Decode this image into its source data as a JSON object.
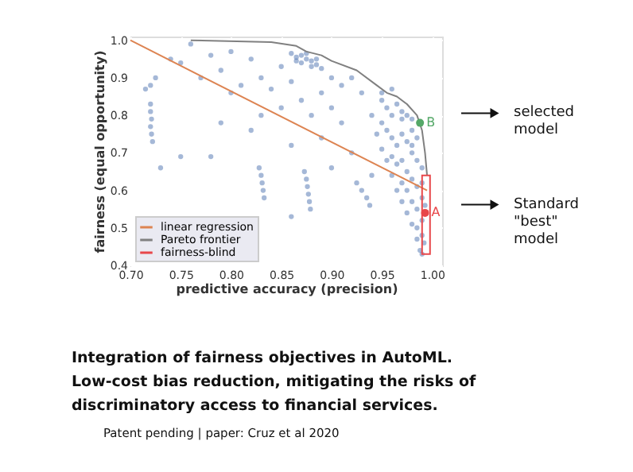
{
  "chart_data": {
    "type": "scatter",
    "xlabel": "predictive accuracy (precision)",
    "ylabel": "fairness (equal opportunity)",
    "xlim": [
      0.7,
      1.01
    ],
    "ylim": [
      0.4,
      1.01
    ],
    "xticks": [
      {
        "value": 0.7,
        "label": "0.70"
      },
      {
        "value": 0.75,
        "label": "0.75"
      },
      {
        "value": 0.8,
        "label": "0.80"
      },
      {
        "value": 0.85,
        "label": "0.85"
      },
      {
        "value": 0.9,
        "label": "0.90"
      },
      {
        "value": 0.95,
        "label": "0.95"
      },
      {
        "value": 1.0,
        "label": "1.00"
      }
    ],
    "yticks": [
      0.4,
      0.5,
      0.6,
      0.7,
      0.8,
      0.9,
      {
        "value": 1.0,
        "label": "1.0"
      }
    ],
    "grid": true,
    "legend": "bottom left",
    "series": [
      {
        "color": "#4c72b0",
        "marker": "circle",
        "x": [
          0.86,
          0.865,
          0.87,
          0.875,
          0.88,
          0.885,
          0.87,
          0.88,
          0.89,
          0.875,
          0.865,
          0.885,
          0.76,
          0.78,
          0.8,
          0.82,
          0.79,
          0.83,
          0.85,
          0.81,
          0.84,
          0.86,
          0.9,
          0.91,
          0.92,
          0.89,
          0.87,
          0.85,
          0.83,
          0.88,
          0.9,
          0.93,
          0.75,
          0.77,
          0.74,
          0.8,
          0.82,
          0.86,
          0.89,
          0.78,
          0.75,
          0.73,
          0.79,
          0.91,
          0.92,
          0.9,
          0.86,
          0.94,
          0.72,
          0.72,
          0.721,
          0.72,
          0.721,
          0.722,
          0.715,
          0.725,
          0.72,
          0.828,
          0.83,
          0.831,
          0.832,
          0.833,
          0.873,
          0.875,
          0.876,
          0.877,
          0.878,
          0.879,
          0.925,
          0.93,
          0.935,
          0.938,
          0.95,
          0.955,
          0.96,
          0.965,
          0.97,
          0.975,
          0.98,
          0.95,
          0.955,
          0.96,
          0.965,
          0.97,
          0.975,
          0.98,
          0.985,
          0.96,
          0.965,
          0.97,
          0.975,
          0.98,
          0.985,
          0.97,
          0.975,
          0.98,
          0.985,
          0.99,
          0.98,
          0.985,
          0.99,
          0.99,
          0.985,
          0.99,
          0.992,
          0.988,
          0.99,
          0.94,
          0.945,
          0.95,
          0.955,
          0.96,
          0.965,
          0.97,
          0.975,
          0.98,
          0.985,
          0.99,
          0.993,
          0.95,
          0.96,
          0.97,
          0.98
        ],
        "values": [
          0.965,
          0.955,
          0.96,
          0.95,
          0.945,
          0.935,
          0.94,
          0.93,
          0.925,
          0.965,
          0.945,
          0.95,
          0.99,
          0.96,
          0.97,
          0.95,
          0.92,
          0.9,
          0.93,
          0.88,
          0.87,
          0.89,
          0.9,
          0.88,
          0.9,
          0.86,
          0.84,
          0.82,
          0.8,
          0.8,
          0.82,
          0.86,
          0.94,
          0.9,
          0.95,
          0.86,
          0.76,
          0.72,
          0.74,
          0.69,
          0.69,
          0.66,
          0.78,
          0.78,
          0.7,
          0.66,
          0.53,
          0.64,
          0.83,
          0.81,
          0.79,
          0.77,
          0.75,
          0.73,
          0.87,
          0.9,
          0.88,
          0.66,
          0.64,
          0.62,
          0.6,
          0.58,
          0.65,
          0.63,
          0.61,
          0.59,
          0.57,
          0.55,
          0.62,
          0.6,
          0.58,
          0.56,
          0.84,
          0.82,
          0.8,
          0.83,
          0.81,
          0.8,
          0.79,
          0.78,
          0.76,
          0.74,
          0.72,
          0.75,
          0.73,
          0.76,
          0.74,
          0.69,
          0.67,
          0.68,
          0.65,
          0.7,
          0.68,
          0.62,
          0.6,
          0.63,
          0.61,
          0.66,
          0.57,
          0.55,
          0.58,
          0.52,
          0.5,
          0.48,
          0.46,
          0.44,
          0.43,
          0.8,
          0.75,
          0.71,
          0.68,
          0.64,
          0.6,
          0.57,
          0.54,
          0.51,
          0.47,
          0.62,
          0.56,
          0.86,
          0.87,
          0.79,
          0.72
        ]
      },
      {
        "type": "line",
        "name": "linear regression",
        "color": "#dd8452",
        "line_style": "solid",
        "x": [
          0.7,
          0.995
        ],
        "values": [
          1.0,
          0.6
        ]
      },
      {
        "type": "line",
        "name": "Pareto frontier",
        "color": "#808080",
        "line_style": "solid",
        "x": [
          0.76,
          0.84,
          0.865,
          0.875,
          0.89,
          0.9,
          0.925,
          0.945,
          0.955,
          0.965,
          0.975,
          0.985,
          0.99,
          0.993,
          0.995
        ],
        "values": [
          1.0,
          0.995,
          0.985,
          0.97,
          0.96,
          0.945,
          0.92,
          0.88,
          0.86,
          0.85,
          0.83,
          0.8,
          0.76,
          0.7,
          0.64
        ]
      },
      {
        "type": "bar",
        "name": "fairness-blind",
        "color": "#e8474a",
        "x": [
          0.994
        ],
        "base": [
          0.43
        ],
        "values": [
          0.21
        ]
      },
      {
        "type": "scatter",
        "color": "#55a868",
        "marker": "circle",
        "x": [
          0.988
        ],
        "values": [
          0.78
        ]
      },
      {
        "type": "scatter",
        "color": "#e8474a",
        "marker": "circle",
        "x": [
          0.993
        ],
        "values": [
          0.54
        ]
      }
    ],
    "annotations": [
      {
        "text": "B",
        "x": 0.988,
        "y": 0.78
      },
      {
        "text": "A",
        "x": 0.993,
        "y": 0.54
      },
      "selected model",
      "Standard \"best\" model",
      "Integration of fairness objectives in AutoML.",
      "Low-cost bias reduction, mitigating the risks of",
      "discriminatory access to financial services.",
      "Patent pending | paper: Cruz et al 2020"
    ]
  }
}
